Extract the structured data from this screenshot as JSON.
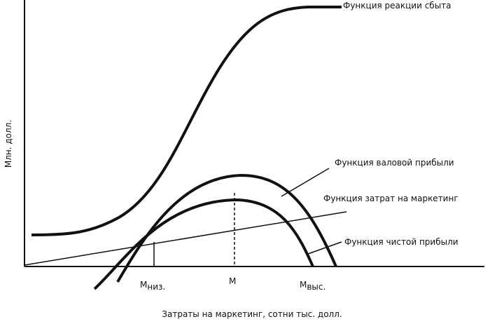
{
  "curves": {
    "sales": "Функция реакции сбыта",
    "gross_profit": "Функция валовой прибыли",
    "marketing_cost": "Функция затрат на маркетинг",
    "net_profit": "Функция чистой прибыли"
  },
  "axes": {
    "y_label": "Млн. долл.",
    "x_label": "Затраты на маркетинг, сотни тыс. долл."
  },
  "markers": [
    {
      "main": "M",
      "sub": "низ."
    },
    {
      "main": "M"
    },
    {
      "main": "M",
      "sub": "выс."
    }
  ]
}
